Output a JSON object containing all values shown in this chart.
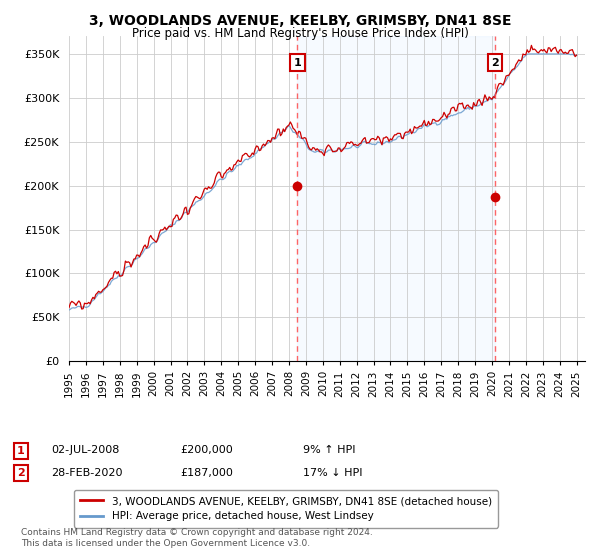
{
  "title": "3, WOODLANDS AVENUE, KEELBY, GRIMSBY, DN41 8SE",
  "subtitle": "Price paid vs. HM Land Registry's House Price Index (HPI)",
  "title_fontsize": 10,
  "subtitle_fontsize": 8.5,
  "ylabel_ticks": [
    "£0",
    "£50K",
    "£100K",
    "£150K",
    "£200K",
    "£250K",
    "£300K",
    "£350K"
  ],
  "ylabel_values": [
    0,
    50000,
    100000,
    150000,
    200000,
    250000,
    300000,
    350000
  ],
  "ylim": [
    0,
    370000
  ],
  "background_color": "#ffffff",
  "plot_bg_color": "#ffffff",
  "grid_color": "#cccccc",
  "red_line_color": "#cc0000",
  "blue_line_color": "#6699cc",
  "shade_color": "#ddeeff",
  "dashed_line_color": "#ff5555",
  "legend_label1": "3, WOODLANDS AVENUE, KEELBY, GRIMSBY, DN41 8SE (detached house)",
  "legend_label2": "HPI: Average price, detached house, West Lindsey",
  "sale1_date": "02-JUL-2008",
  "sale1_price": "£200,000",
  "sale1_hpi": "9% ↑ HPI",
  "sale1_year": 2008.5,
  "sale2_date": "28-FEB-2020",
  "sale2_price": "£187,000",
  "sale2_hpi": "17% ↓ HPI",
  "sale2_year": 2020.167,
  "copyright_text": "Contains HM Land Registry data © Crown copyright and database right 2024.\nThis data is licensed under the Open Government Licence v3.0.",
  "xmin": 1995,
  "xmax": 2025.5
}
